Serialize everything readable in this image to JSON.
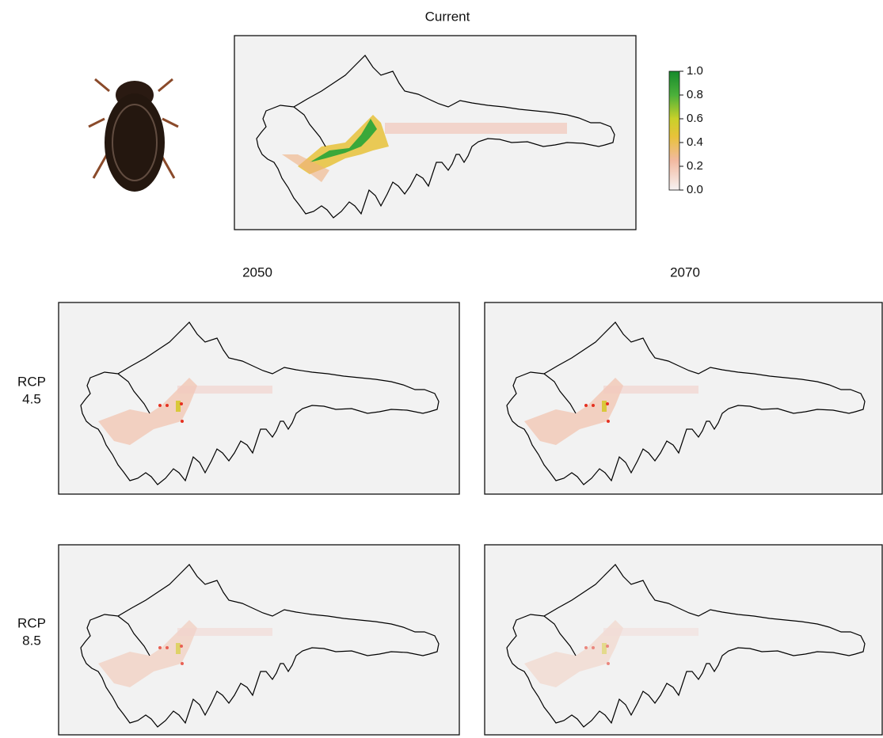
{
  "panels": {
    "current": {
      "title": "Current"
    },
    "columns": [
      "2050",
      "2070"
    ],
    "rows": [
      {
        "label": [
          "RCP",
          "4.5"
        ]
      },
      {
        "label": [
          "RCP",
          "8.5"
        ]
      }
    ]
  },
  "legend": {
    "ticks": [
      {
        "value": 0,
        "label": "0.0"
      },
      {
        "value": 0.2,
        "label": "0.2"
      },
      {
        "value": 0.4,
        "label": "0.4"
      },
      {
        "value": 0.6,
        "label": "0.6"
      },
      {
        "value": 0.8,
        "label": "0.8"
      },
      {
        "value": 1,
        "label": "1.0"
      }
    ]
  }
}
